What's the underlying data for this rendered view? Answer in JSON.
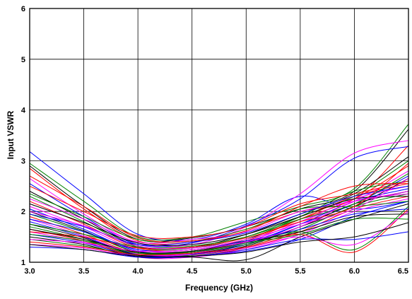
{
  "chart_data": {
    "type": "line",
    "title": "",
    "xlabel": "Frequency (GHz)",
    "ylabel": "Input VSWR",
    "xlim": [
      3.0,
      6.5
    ],
    "ylim": [
      1,
      6
    ],
    "x_ticks": [
      "3.0",
      "3.5",
      "4.0",
      "4.5",
      "5.0",
      "5.5",
      "6.0",
      "6.5"
    ],
    "y_ticks": [
      "1",
      "2",
      "3",
      "4",
      "5",
      "6"
    ],
    "grid": true,
    "legend": "none",
    "x": [
      3.0,
      3.5,
      4.0,
      4.5,
      5.0,
      5.5,
      6.0,
      6.5
    ],
    "series": [
      {
        "color": "#0000ff",
        "values": [
          3.18,
          2.35,
          1.55,
          1.45,
          1.75,
          2.3,
          2.05,
          2.2
        ]
      },
      {
        "color": "#008000",
        "values": [
          2.95,
          2.2,
          1.5,
          1.5,
          1.8,
          2.1,
          2.45,
          3.72
        ]
      },
      {
        "color": "#000000",
        "values": [
          2.9,
          2.1,
          1.45,
          1.48,
          1.7,
          2.05,
          2.4,
          3.62
        ]
      },
      {
        "color": "#ff0000",
        "values": [
          2.85,
          2.05,
          1.42,
          1.4,
          1.65,
          2.0,
          2.25,
          3.3
        ]
      },
      {
        "color": "#ff00ff",
        "values": [
          2.65,
          1.95,
          1.38,
          1.35,
          1.7,
          2.35,
          3.15,
          3.4
        ]
      },
      {
        "color": "#0000ff",
        "values": [
          2.55,
          1.9,
          1.35,
          1.38,
          1.72,
          2.25,
          3.05,
          3.28
        ]
      },
      {
        "color": "#000000",
        "values": [
          2.4,
          1.85,
          1.32,
          1.3,
          1.55,
          1.95,
          2.35,
          3.08
        ]
      },
      {
        "color": "#008000",
        "values": [
          2.3,
          1.8,
          1.3,
          1.28,
          1.5,
          1.9,
          2.3,
          3.0
        ]
      },
      {
        "color": "#ff0000",
        "values": [
          2.2,
          1.75,
          1.28,
          1.25,
          1.45,
          1.85,
          2.25,
          2.9
        ]
      },
      {
        "color": "#ff00ff",
        "values": [
          2.1,
          1.7,
          1.25,
          1.22,
          1.4,
          1.8,
          2.2,
          2.8
        ]
      },
      {
        "color": "#0000ff",
        "values": [
          2.05,
          1.65,
          1.22,
          1.2,
          1.38,
          1.75,
          2.15,
          2.7
        ]
      },
      {
        "color": "#000000",
        "values": [
          2.0,
          1.62,
          1.2,
          1.18,
          1.35,
          1.7,
          2.1,
          2.65
        ]
      },
      {
        "color": "#008000",
        "values": [
          1.95,
          1.6,
          1.2,
          1.22,
          1.45,
          1.9,
          2.4,
          2.6
        ]
      },
      {
        "color": "#ff0000",
        "values": [
          1.9,
          1.55,
          1.18,
          1.2,
          1.42,
          1.85,
          2.3,
          2.55
        ]
      },
      {
        "color": "#ff00ff",
        "values": [
          1.85,
          1.52,
          1.16,
          1.18,
          1.4,
          1.8,
          2.25,
          2.5
        ]
      },
      {
        "color": "#0000ff",
        "values": [
          1.8,
          1.5,
          1.15,
          1.16,
          1.35,
          1.75,
          2.2,
          2.45
        ]
      },
      {
        "color": "#000000",
        "values": [
          1.75,
          1.48,
          1.14,
          1.15,
          1.32,
          1.7,
          2.15,
          2.4
        ]
      },
      {
        "color": "#008000",
        "values": [
          1.7,
          1.45,
          1.13,
          1.14,
          1.3,
          1.65,
          2.1,
          2.35
        ]
      },
      {
        "color": "#ff0000",
        "values": [
          1.65,
          1.42,
          1.12,
          1.12,
          1.28,
          1.6,
          2.05,
          2.3
        ]
      },
      {
        "color": "#ff00ff",
        "values": [
          1.6,
          1.4,
          1.1,
          1.1,
          1.25,
          1.55,
          2.0,
          2.25
        ]
      },
      {
        "color": "#0000ff",
        "values": [
          1.55,
          1.38,
          1.12,
          1.12,
          1.22,
          1.45,
          1.9,
          2.2
        ]
      },
      {
        "color": "#000000",
        "values": [
          1.5,
          1.35,
          1.1,
          1.1,
          1.05,
          1.5,
          1.85,
          2.15
        ]
      },
      {
        "color": "#008000",
        "values": [
          1.45,
          1.32,
          1.15,
          1.2,
          1.35,
          1.6,
          1.25,
          2.1
        ]
      },
      {
        "color": "#ff0000",
        "values": [
          1.4,
          1.3,
          1.15,
          1.18,
          1.3,
          1.55,
          1.2,
          2.05
        ]
      },
      {
        "color": "#ff00ff",
        "values": [
          1.35,
          1.28,
          1.12,
          1.15,
          1.28,
          1.5,
          1.35,
          2.0
        ]
      },
      {
        "color": "#0000ff",
        "values": [
          1.3,
          1.25,
          1.1,
          1.12,
          1.25,
          1.45,
          1.45,
          1.6
        ]
      },
      {
        "color": "#000000",
        "values": [
          1.35,
          1.25,
          1.12,
          1.12,
          1.2,
          1.4,
          1.5,
          1.78
        ]
      },
      {
        "color": "#008000",
        "values": [
          2.35,
          1.9,
          1.45,
          1.42,
          1.65,
          2.05,
          2.1,
          2.2
        ]
      },
      {
        "color": "#ff0000",
        "values": [
          2.5,
          2.0,
          1.52,
          1.5,
          1.7,
          2.15,
          2.35,
          2.6
        ]
      },
      {
        "color": "#ff00ff",
        "values": [
          2.25,
          1.85,
          1.4,
          1.45,
          1.6,
          2.0,
          2.2,
          2.4
        ]
      },
      {
        "color": "#0000ff",
        "values": [
          1.95,
          1.7,
          1.35,
          1.4,
          1.58,
          1.95,
          2.3,
          2.5
        ]
      },
      {
        "color": "#000000",
        "values": [
          2.15,
          1.78,
          1.38,
          1.35,
          1.55,
          1.9,
          2.25,
          2.3
        ]
      },
      {
        "color": "#008000",
        "values": [
          1.75,
          1.55,
          1.3,
          1.32,
          1.5,
          1.85,
          2.15,
          2.75
        ]
      },
      {
        "color": "#ff0000",
        "values": [
          1.6,
          1.5,
          1.28,
          1.3,
          1.48,
          1.8,
          2.1,
          2.95
        ]
      },
      {
        "color": "#ff00ff",
        "values": [
          2.0,
          1.72,
          1.32,
          1.28,
          1.45,
          1.75,
          2.05,
          2.65
        ]
      },
      {
        "color": "#0000ff",
        "values": [
          1.85,
          1.6,
          1.25,
          1.25,
          1.42,
          1.65,
          1.95,
          2.05
        ]
      },
      {
        "color": "#000000",
        "values": [
          1.65,
          1.45,
          1.2,
          1.22,
          1.4,
          1.6,
          1.9,
          1.95
        ]
      },
      {
        "color": "#008000",
        "values": [
          1.55,
          1.42,
          1.18,
          1.2,
          1.38,
          1.55,
          1.85,
          1.85
        ]
      },
      {
        "color": "#ff0000",
        "values": [
          2.7,
          2.1,
          1.48,
          1.42,
          1.62,
          2.1,
          2.5,
          2.55
        ]
      },
      {
        "color": "#ff00ff",
        "values": [
          1.45,
          1.38,
          1.22,
          1.25,
          1.4,
          1.7,
          2.2,
          2.35
        ]
      }
    ]
  }
}
